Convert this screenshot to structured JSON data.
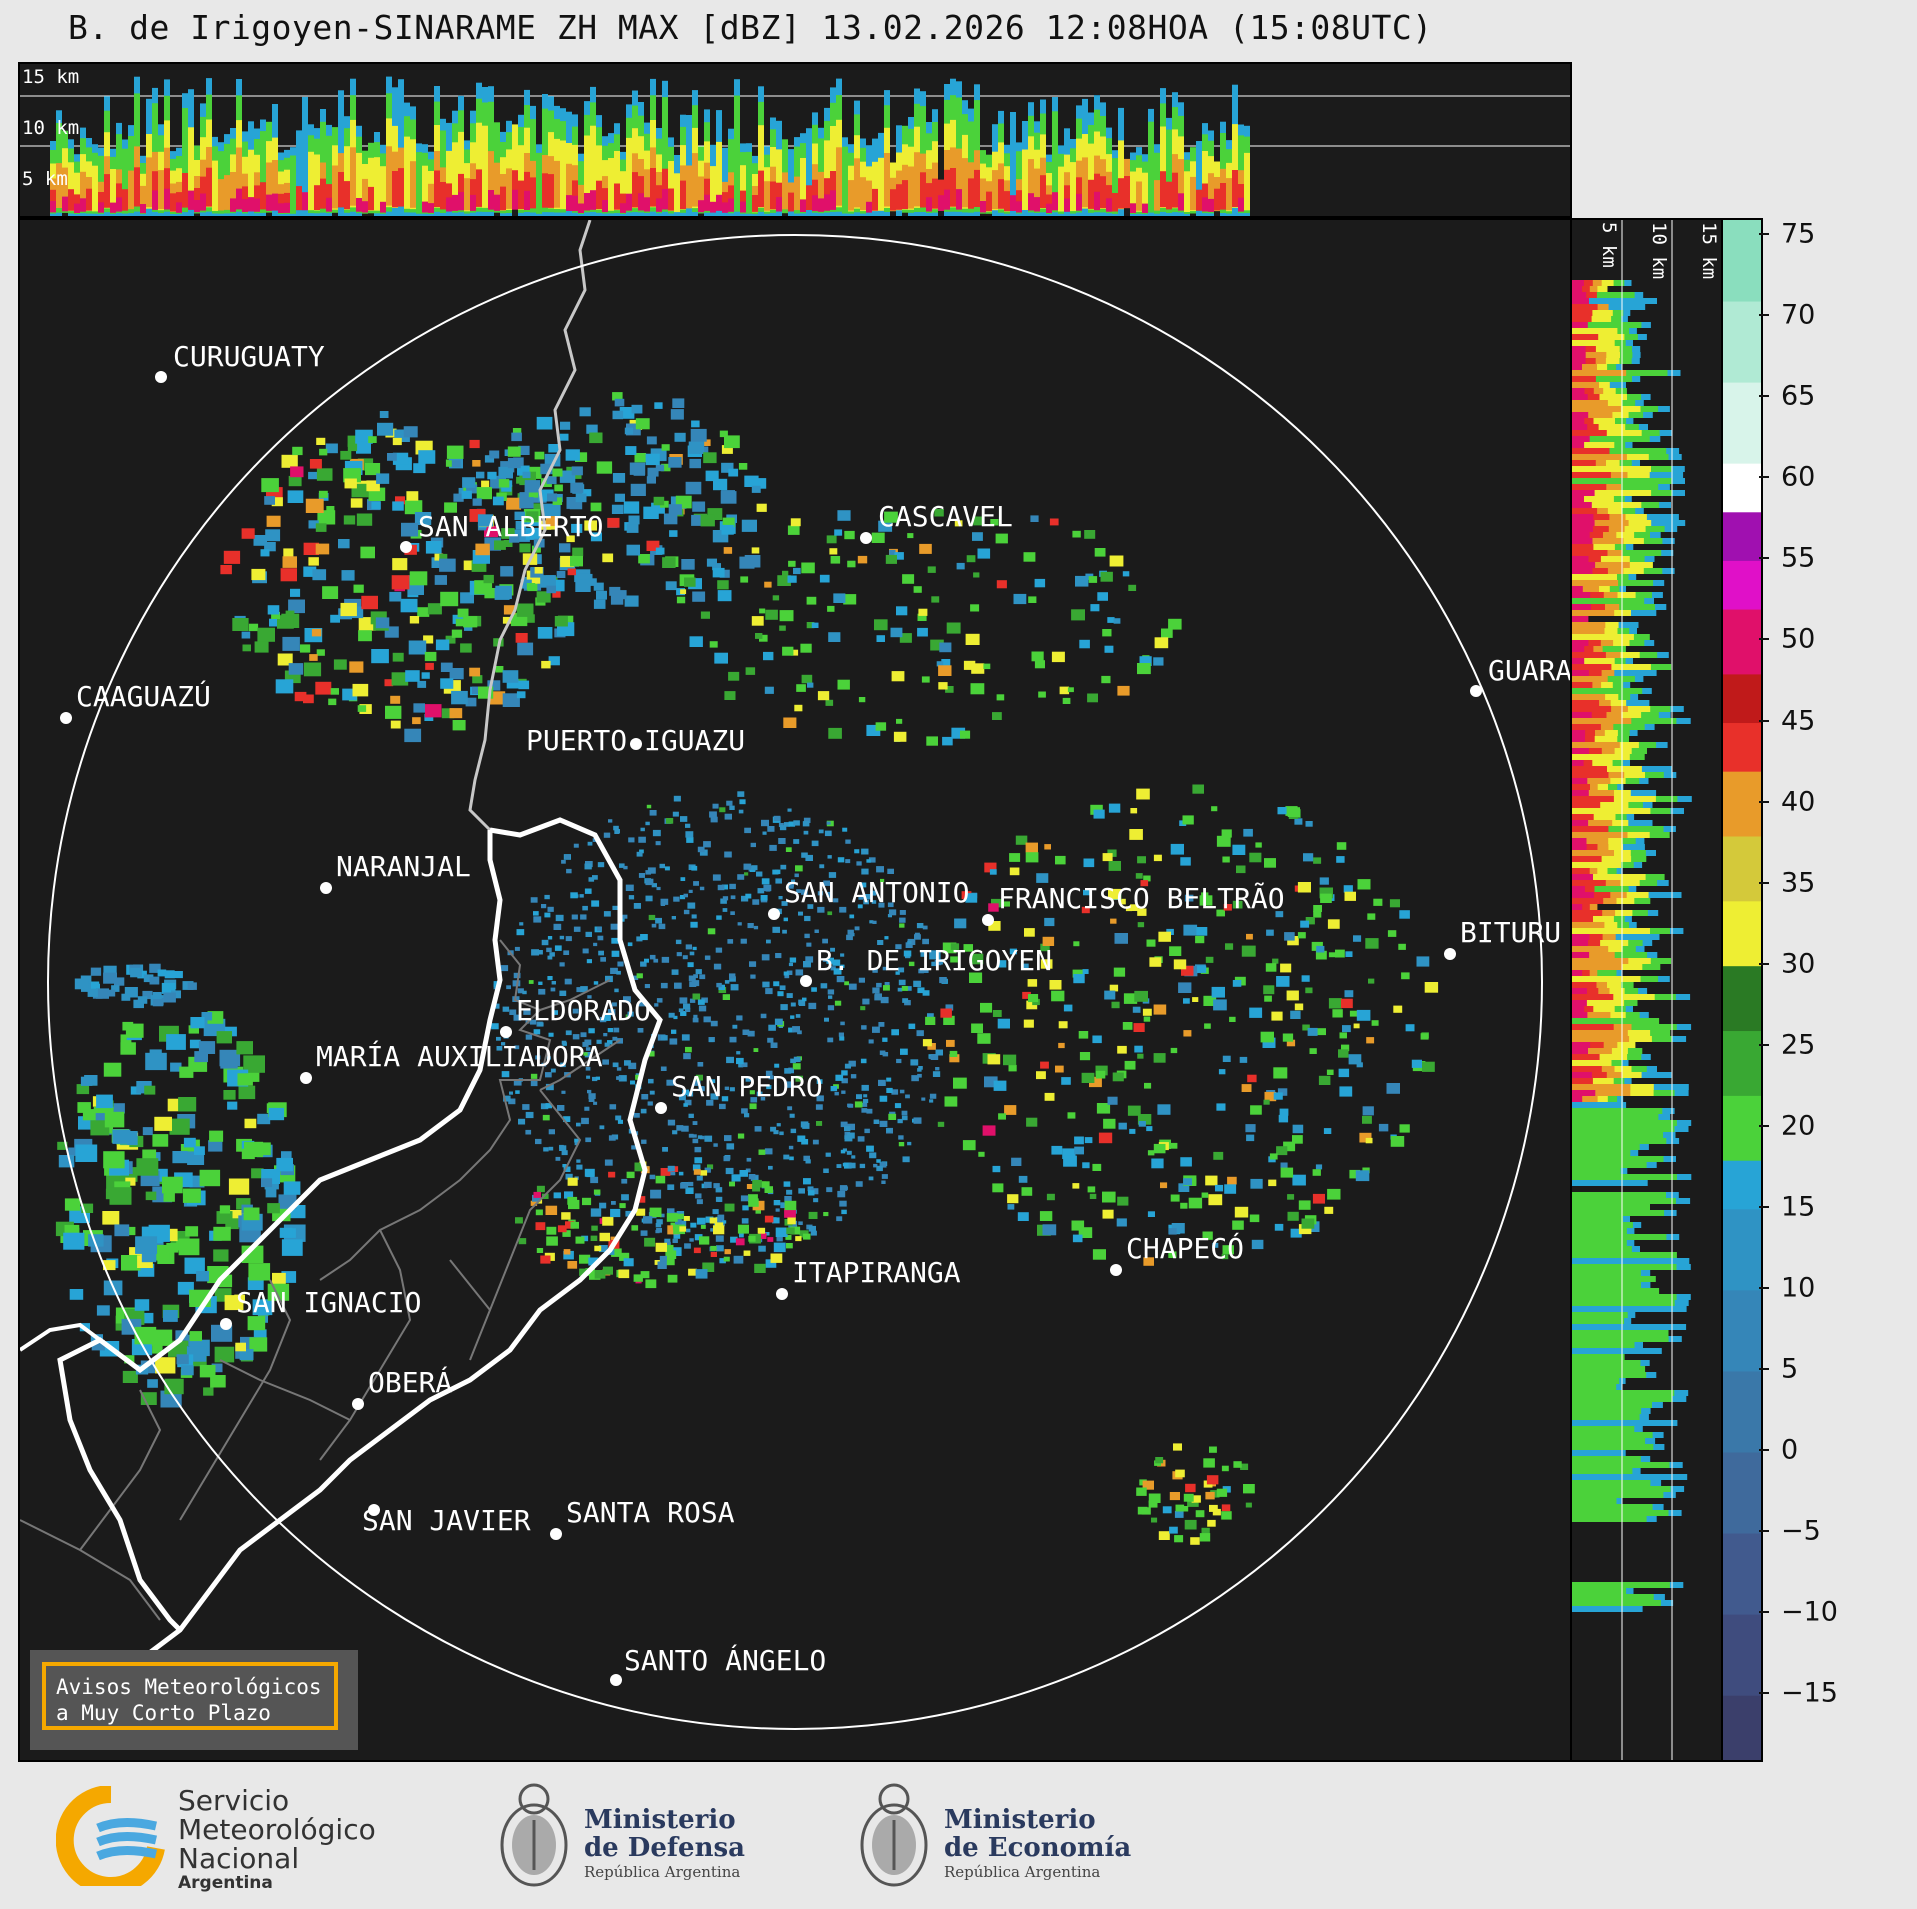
{
  "title": "B. de Irigoyen-SINARAME ZH MAX [dBZ] 13.02.2026 12:08HOA (15:08UTC)",
  "top_panel": {
    "altitudes": [
      "15 km",
      "10 km",
      "5 km"
    ]
  },
  "side_panel": {
    "altitudes": [
      "5 km",
      "10 km",
      "15 km"
    ]
  },
  "colorbar": {
    "unit": "dBZ",
    "ticks": [
      "75",
      "70",
      "65",
      "60",
      "55",
      "50",
      "45",
      "40",
      "35",
      "30",
      "25",
      "20",
      "15",
      "10",
      "5",
      "0",
      "−5",
      "−10",
      "−15"
    ],
    "tick_values": [
      75,
      70,
      65,
      60,
      55,
      50,
      45,
      40,
      35,
      30,
      25,
      20,
      15,
      10,
      5,
      0,
      -5,
      -10,
      -15
    ],
    "range": [
      -19,
      76
    ],
    "stops": [
      {
        "from": -19,
        "to": -15,
        "color": "#3b3f6b"
      },
      {
        "from": -15,
        "to": -10,
        "color": "#3f4c7e"
      },
      {
        "from": -10,
        "to": -5,
        "color": "#415a8e"
      },
      {
        "from": -5,
        "to": 0,
        "color": "#3f6a9c"
      },
      {
        "from": 0,
        "to": 5,
        "color": "#3a78a9"
      },
      {
        "from": 5,
        "to": 10,
        "color": "#3586b8"
      },
      {
        "from": 10,
        "to": 15,
        "color": "#2f93c4"
      },
      {
        "from": 15,
        "to": 18,
        "color": "#27a4d6"
      },
      {
        "from": 18,
        "to": 22,
        "color": "#4bd23a"
      },
      {
        "from": 22,
        "to": 26,
        "color": "#39a833"
      },
      {
        "from": 26,
        "to": 30,
        "color": "#2a7a24"
      },
      {
        "from": 30,
        "to": 34,
        "color": "#eeee33"
      },
      {
        "from": 34,
        "to": 38,
        "color": "#d4c93a"
      },
      {
        "from": 38,
        "to": 42,
        "color": "#e89b2a"
      },
      {
        "from": 42,
        "to": 45,
        "color": "#e8302a"
      },
      {
        "from": 45,
        "to": 48,
        "color": "#c01a1a"
      },
      {
        "from": 48,
        "to": 52,
        "color": "#e0106a"
      },
      {
        "from": 52,
        "to": 55,
        "color": "#e010c8"
      },
      {
        "from": 55,
        "to": 58,
        "color": "#a010b0"
      },
      {
        "from": 58,
        "to": 61,
        "color": "#ffffff"
      },
      {
        "from": 61,
        "to": 66,
        "color": "#d8f4ea"
      },
      {
        "from": 66,
        "to": 71,
        "color": "#b0ead4"
      },
      {
        "from": 71,
        "to": 76,
        "color": "#8adebe"
      }
    ]
  },
  "cities": [
    {
      "name": "CURUGUATY",
      "id": "curuguaty"
    },
    {
      "name": "SAN ALBERTO",
      "id": "san-alberto"
    },
    {
      "name": "CASCAVEL",
      "id": "cascavel"
    },
    {
      "name": "CAAGUAZÚ",
      "id": "caaguazu"
    },
    {
      "name": "GUARA",
      "id": "guara"
    },
    {
      "name": "PUERTO IGUAZU",
      "id": "puerto-iguazu"
    },
    {
      "name": "NARANJAL",
      "id": "naranjal"
    },
    {
      "name": "SAN ANTONIO",
      "id": "san-antonio"
    },
    {
      "name": "FRANCISCO BELTRÃO",
      "id": "francisco-beltrao"
    },
    {
      "name": "BITURU",
      "id": "bituru"
    },
    {
      "name": "B. DE IRIGOYEN",
      "id": "b-de-irigoyen"
    },
    {
      "name": "ELDORADO",
      "id": "eldorado"
    },
    {
      "name": "MARÍA AUXILIADORA",
      "id": "maria-auxiliadora"
    },
    {
      "name": "SAN PEDRO",
      "id": "san-pedro"
    },
    {
      "name": "CHAPECÓ",
      "id": "chapeco"
    },
    {
      "name": "ITAPIRANGA",
      "id": "itapiranga"
    },
    {
      "name": "SAN IGNACIO",
      "id": "san-ignacio"
    },
    {
      "name": "OBERÁ",
      "id": "obera"
    },
    {
      "name": "SAN JAVIER",
      "id": "san-javier"
    },
    {
      "name": "SANTA ROSA",
      "id": "santa-rosa"
    },
    {
      "name": "SANTO ÁNGELO",
      "id": "santo-angelo"
    }
  ],
  "warning_box": {
    "line1": "Avisos Meteorológicos",
    "line2": "a Muy Corto Plazo"
  },
  "logos": {
    "smn": {
      "line1": "Servicio",
      "line2": "Meteorológico",
      "line3": "Nacional",
      "line4": "Argentina"
    },
    "defensa": {
      "line1": "Ministerio",
      "line2": "de Defensa",
      "line3": "República Argentina"
    },
    "economia": {
      "line1": "Ministerio",
      "line2": "de Economía",
      "line3": "República Argentina"
    }
  },
  "colors": {
    "background": "#e8e8e8",
    "panel": "#1b1b1b",
    "border": "#ffffff",
    "warning_accent": "#f5a800"
  }
}
